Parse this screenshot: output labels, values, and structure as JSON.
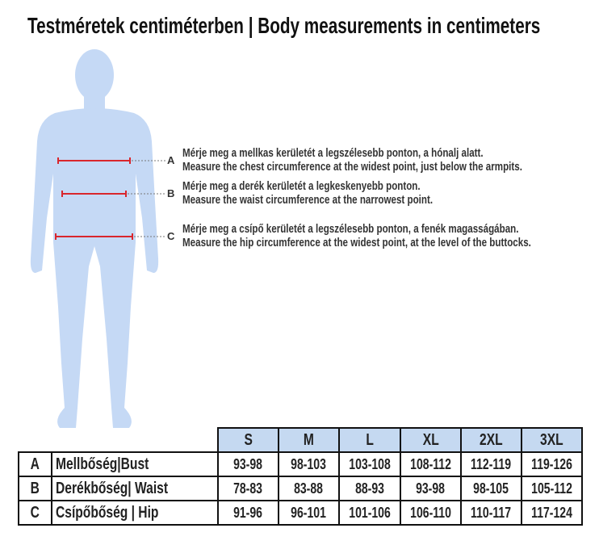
{
  "title": "Testméretek centiméterben | Body measurements in centimeters",
  "colors": {
    "figure": "#c5d9f5",
    "measure_line": "#d9262c",
    "header_fill": "#c5d9f1"
  },
  "measurements": [
    {
      "letter": "A",
      "hu": "Mérje meg a mellkas kerületét a legszélesebb ponton, a hónalj alatt.",
      "en": "Measure the chest circumference at the widest point, just below the armpits."
    },
    {
      "letter": "B",
      "hu": "Mérje meg a derék kerületét a legkeskenyebb ponton.",
      "en": "Measure the waist circumference at the narrowest point."
    },
    {
      "letter": "C",
      "hu": "Mérje meg a csípő kerületét a legszélesebb ponton, a fenék magasságában.",
      "en": "Measure the hip circumference at the widest point, at the level of the buttocks."
    }
  ],
  "table": {
    "sizes": [
      "S",
      "M",
      "L",
      "XL",
      "2XL",
      "3XL"
    ],
    "rows": [
      {
        "letter": "A",
        "label": "Mellbőség|Bust",
        "values": [
          "93-98",
          "98-103",
          "103-108",
          "108-112",
          "112-119",
          "119-126"
        ]
      },
      {
        "letter": "B",
        "label": "Derékbőség| Waist",
        "values": [
          "78-83",
          "83-88",
          "88-93",
          "93-98",
          "98-105",
          "105-112"
        ]
      },
      {
        "letter": "C",
        "label": "Csípőbőség | Hip",
        "values": [
          "91-96",
          "96-101",
          "101-106",
          "106-110",
          "110-117",
          "117-124"
        ]
      }
    ]
  }
}
